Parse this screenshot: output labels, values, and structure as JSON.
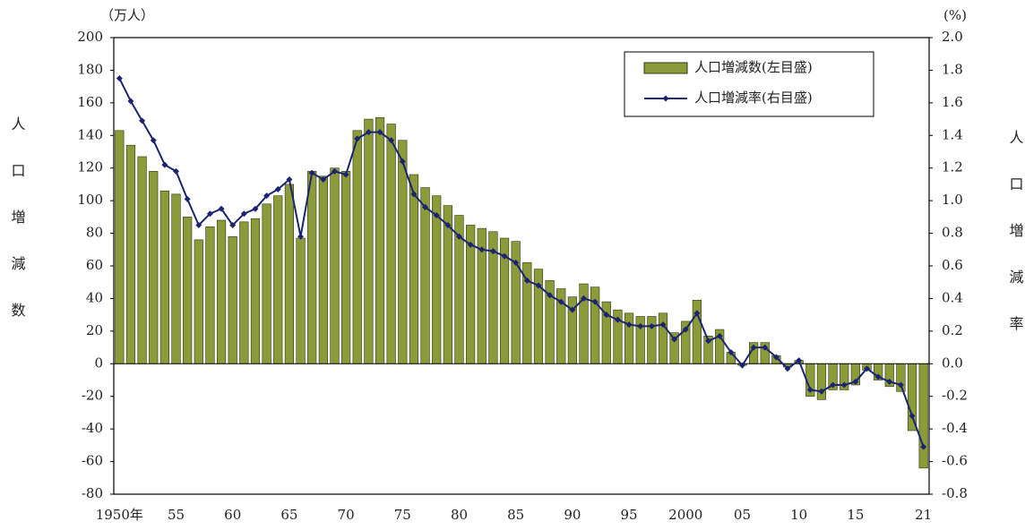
{
  "chart_data": {
    "type": "bar-line",
    "y_unit": "（万人）",
    "y2_unit": "(%)",
    "y_label": "人口増減数",
    "y2_label": "人口増減率",
    "categories": [
      "1950年",
      null,
      null,
      null,
      null,
      "55",
      null,
      null,
      null,
      null,
      "60",
      null,
      null,
      null,
      null,
      "65",
      null,
      null,
      null,
      null,
      "70",
      null,
      null,
      null,
      null,
      "75",
      null,
      null,
      null,
      null,
      "80",
      null,
      null,
      null,
      null,
      "85",
      null,
      null,
      null,
      null,
      "90",
      null,
      null,
      null,
      null,
      "95",
      null,
      null,
      null,
      null,
      "2000",
      null,
      null,
      null,
      null,
      "05",
      null,
      null,
      null,
      null,
      "10",
      null,
      null,
      null,
      null,
      "15",
      null,
      null,
      null,
      null,
      null,
      "21"
    ],
    "series": [
      {
        "name": "人口増減数(左目盛)",
        "type": "bar",
        "color": "#8c9b3a",
        "values": [
          143,
          134,
          127,
          118,
          106,
          104,
          90,
          76,
          84,
          88,
          78,
          87,
          89,
          98,
          103,
          110,
          77,
          118,
          115,
          120,
          118,
          143,
          150,
          151,
          147,
          137,
          116,
          108,
          103,
          97,
          91,
          85,
          83,
          81,
          77,
          75,
          62,
          58,
          51,
          46,
          41,
          49,
          47,
          38,
          33,
          31,
          29,
          29,
          31,
          19,
          26,
          39,
          17,
          21,
          7,
          -1,
          13,
          13,
          5,
          -2,
          2,
          -20,
          -22,
          -16,
          -16,
          -13,
          -4,
          -10,
          -14,
          -17,
          -41,
          -64
        ]
      },
      {
        "name": "人口増減率(右目盛)",
        "type": "line",
        "axis": "y2",
        "color": "#1c2470",
        "values": [
          1.75,
          1.61,
          1.49,
          1.37,
          1.22,
          1.18,
          1.01,
          0.85,
          0.92,
          0.95,
          0.85,
          0.92,
          0.95,
          1.03,
          1.07,
          1.13,
          0.78,
          1.17,
          1.13,
          1.18,
          1.16,
          1.38,
          1.42,
          1.42,
          1.37,
          1.24,
          1.04,
          0.96,
          0.91,
          0.85,
          0.78,
          0.73,
          0.7,
          0.69,
          0.66,
          0.62,
          0.51,
          0.48,
          0.42,
          0.38,
          0.33,
          0.4,
          0.38,
          0.3,
          0.27,
          0.24,
          0.23,
          0.23,
          0.24,
          0.15,
          0.21,
          0.31,
          0.14,
          0.17,
          0.07,
          -0.01,
          0.1,
          0.1,
          0.04,
          -0.03,
          0.02,
          -0.16,
          -0.17,
          -0.13,
          -0.13,
          -0.11,
          -0.03,
          -0.08,
          -0.11,
          -0.13,
          -0.32,
          -0.51
        ]
      }
    ],
    "ylim": [
      -80,
      200
    ],
    "yticks": [
      -80,
      -60,
      -40,
      -20,
      0,
      20,
      40,
      60,
      80,
      100,
      120,
      140,
      160,
      180,
      200
    ],
    "y2lim": [
      -0.8,
      2.0
    ],
    "y2ticks": [
      -0.8,
      -0.6,
      -0.4,
      -0.2,
      {
        "value": 0,
        "label": "0.0"
      },
      0.2,
      0.4,
      0.6,
      0.8,
      {
        "value": 1,
        "label": "1.0"
      },
      1.2,
      1.4,
      1.6,
      1.8,
      {
        "value": 2,
        "label": "2.0"
      }
    ],
    "legend": "top-right"
  }
}
